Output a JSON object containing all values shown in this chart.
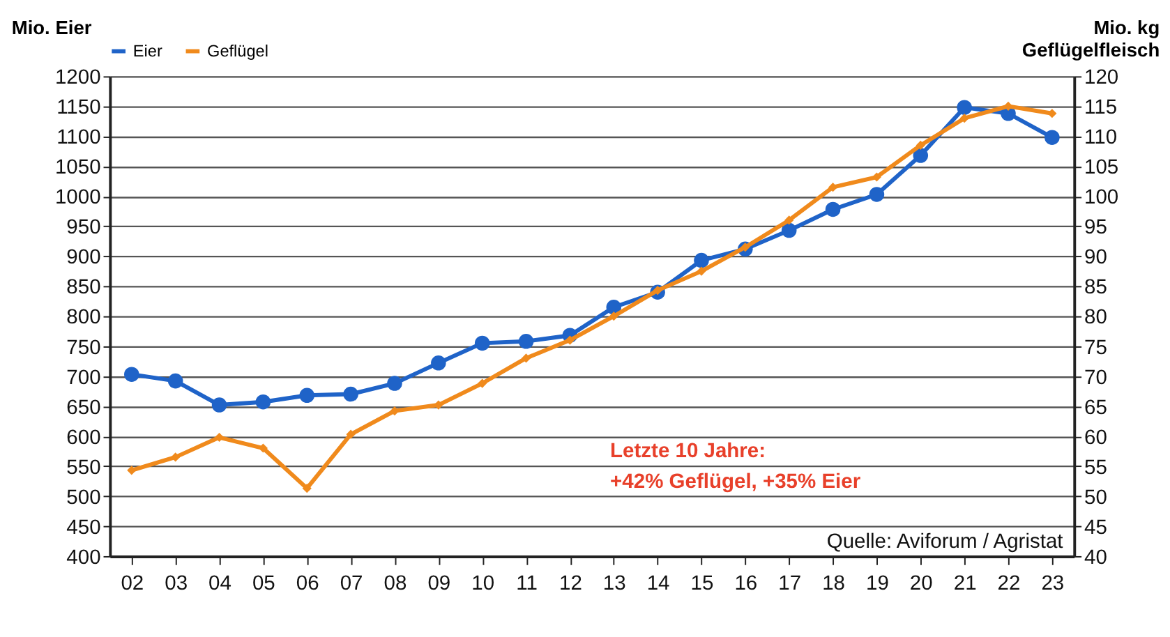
{
  "chart_data": {
    "type": "line",
    "ylabel": "Mio. Eier",
    "y2label": "Mio. kg\nGeflügelfleisch",
    "categories": [
      "02",
      "03",
      "04",
      "05",
      "06",
      "07",
      "08",
      "09",
      "10",
      "11",
      "12",
      "13",
      "14",
      "15",
      "16",
      "17",
      "18",
      "19",
      "20",
      "21",
      "22",
      "23"
    ],
    "series": [
      {
        "name": "Eier",
        "color": "#1f63c8",
        "marker": "circle",
        "values": [
          703,
          692,
          652,
          657,
          668,
          670,
          688,
          722,
          755,
          758,
          768,
          815,
          840,
          893,
          912,
          943,
          978,
          1003,
          1068,
          1148,
          1138,
          1098
        ]
      },
      {
        "name": "Geflügel",
        "color": "#f08a1c",
        "marker": "diamond",
        "axis": "y2",
        "values": [
          54.3,
          56.5,
          59.8,
          58,
          51.3,
          60.3,
          64.2,
          65.2,
          68.8,
          73,
          76,
          80,
          84.3,
          87.5,
          91.5,
          96,
          101.5,
          103.2,
          108.5,
          113,
          115,
          113.8
        ]
      }
    ],
    "ylim": [
      400,
      1200
    ],
    "yticks": [
      400,
      450,
      500,
      550,
      600,
      650,
      700,
      750,
      800,
      850,
      900,
      950,
      1000,
      1050,
      1100,
      1150,
      1200
    ],
    "y2lim": [
      40,
      120
    ],
    "y2ticks": [
      40,
      45,
      50,
      55,
      60,
      65,
      70,
      75,
      80,
      85,
      90,
      95,
      100,
      105,
      110,
      115,
      120
    ],
    "grid": "y",
    "legend": "top",
    "line_style": "solid",
    "annotations": [
      "Letzte 10 Jahre:",
      "+42% Geflügel, +35% Eier",
      "Quelle: Aviforum / Agristat"
    ]
  }
}
